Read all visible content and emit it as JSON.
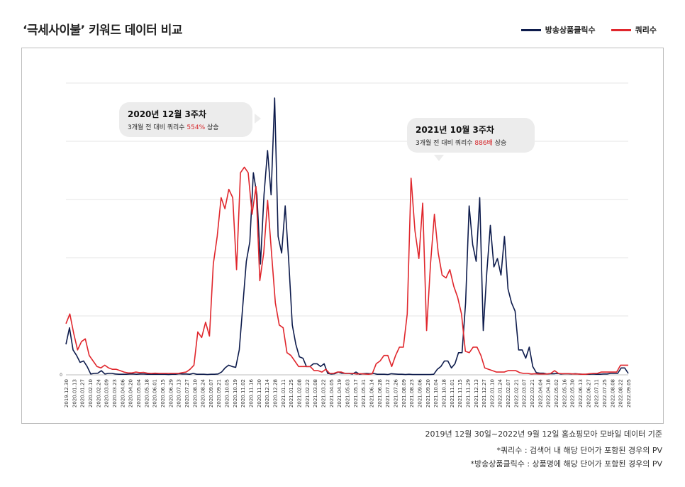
{
  "title": "‘극세사이불’ 키워드 데이터 비교",
  "legend": [
    {
      "label": "방송상품클릭수",
      "color": "#0d1b4c"
    },
    {
      "label": "쿼리수",
      "color": "#e0262c"
    }
  ],
  "callouts": [
    {
      "heading": "2020년 12월 3주차",
      "text_prefix": "3개월 전 대비 쿼리수 ",
      "highlight": "554%",
      "text_suffix": " 상승"
    },
    {
      "heading": "2021년 10월 3주차",
      "text_prefix": "3개월 전 대비 쿼리수 ",
      "highlight": "886배",
      "text_suffix": " 상승"
    }
  ],
  "footnotes": {
    "period": "2019년 12월 30일~2022년 9월 12일 홈쇼핑모아 모바일 데이터 기준",
    "query_def": "*쿼리수 : 검색어 내 해당 단어가 포함된 경우의 PV",
    "click_def": "*방송상품클릭수 : 상품명에 해당 단어가 포함된 경우의 PV"
  },
  "chart_data": {
    "type": "line",
    "y_tick_label": "0",
    "ylim": [
      0,
      100
    ],
    "grid": true,
    "legend_position": "top-right",
    "x_tick_labels": [
      "2019.12.30",
      "2020.01.13",
      "2020.01.27",
      "2020.02.10",
      "2020.02.24",
      "2020.03.09",
      "2020.03.23",
      "2020.04.06",
      "2020.04.20",
      "2020.05.04",
      "2020.05.18",
      "2020.06.01",
      "2020.06.15",
      "2020.06.29",
      "2020.07.13",
      "2020.07.27",
      "2020.08.10",
      "2020.08.24",
      "2020.09.07",
      "2020.09.21",
      "2020.10.05",
      "2020.10.19",
      "2020.11.02",
      "2020.11.16",
      "2020.11.30",
      "2020.12.14",
      "2020.12.28",
      "2021.01.11",
      "2021.01.25",
      "2021.02.08",
      "2021.02.22",
      "2021.03.08",
      "2021.03.22",
      "2021.04.05",
      "2021.04.19",
      "2021.05.03",
      "2021.05.17",
      "2021.05.31",
      "2021.06.14",
      "2021.06.28",
      "2021.07.12",
      "2021.07.26",
      "2021.08.09",
      "2021.08.23",
      "2021.09.06",
      "2021.09.20",
      "2021.10.04",
      "2021.10.18",
      "2021.11.01",
      "2021.11.15",
      "2021.11.29",
      "2021.12.13",
      "2021.12.27",
      "2022.01.10",
      "2022.01.24",
      "2022.02.07",
      "2022.02.21",
      "2022.03.07",
      "2022.03.21",
      "2022.04.04",
      "2022.04.18",
      "2022.05.02",
      "2022.05.16",
      "2022.05.30",
      "2022.06.13",
      "2022.06.27",
      "2022.07.11",
      "2022.07.25",
      "2022.08.08",
      "2022.08.22",
      "2022.09.05"
    ],
    "series": [
      {
        "name": "방송상품클릭수",
        "color": "#0d1b4c",
        "values": [
          11,
          17,
          9,
          7,
          4.5,
          5,
          3,
          0.3,
          0.5,
          0.6,
          1.5,
          0.3,
          0.5,
          0.5,
          0.3,
          0.2,
          0.2,
          0.2,
          0.3,
          0.3,
          0.2,
          0.3,
          0.3,
          0.2,
          0.2,
          0.2,
          0.2,
          0.2,
          0.2,
          0.1,
          0.2,
          0.2,
          0.4,
          0.3,
          0.3,
          0.2,
          0.5,
          0.2,
          0.2,
          0.2,
          0.1,
          0.2,
          0.2,
          0.3,
          1,
          2.5,
          3.5,
          3,
          2.7,
          9,
          25,
          41,
          48,
          73,
          65,
          40,
          65,
          81,
          65,
          100,
          50,
          44,
          61,
          41,
          18,
          11,
          6.5,
          6,
          3,
          3,
          4,
          4,
          3,
          4,
          0.5,
          0.3,
          0.4,
          1,
          0.6,
          0.5,
          0.5,
          0.3,
          1,
          0.2,
          0.4,
          0.5,
          0.4,
          0.5,
          0.2,
          0.2,
          0.2,
          0.1,
          0.4,
          0.3,
          0.2,
          0.2,
          0.1,
          0.2,
          0.1,
          0.1,
          0.1,
          0.1,
          0.1,
          0.1,
          0.2,
          2,
          3,
          5,
          5,
          2.5,
          4,
          8,
          8,
          26,
          61,
          47,
          41,
          64,
          16,
          37,
          54,
          39,
          42,
          36,
          50,
          31,
          26,
          23,
          9,
          9,
          6,
          10,
          3,
          0.8,
          0.6,
          0.6,
          0.3,
          0.4,
          0.4,
          0.5,
          0.3,
          0.4,
          0.4,
          0.3,
          0.4,
          0.3,
          0.2,
          0.2,
          0.2,
          0.3,
          0.2,
          0.2,
          0.3,
          0.3,
          0.5,
          0.5,
          0.5,
          2.5,
          2.5,
          0.5
        ]
      },
      {
        "name": "쿼리수",
        "color": "#e0262c",
        "values": [
          18.5,
          22,
          15,
          9,
          12,
          13,
          7,
          5,
          3,
          2.5,
          3.5,
          2.5,
          2,
          2,
          1.5,
          1,
          0.7,
          0.7,
          1,
          0.8,
          0.9,
          0.6,
          0.5,
          0.6,
          0.5,
          0.5,
          0.5,
          0.5,
          0.5,
          0.5,
          0.8,
          1,
          2,
          3.5,
          15.5,
          13.5,
          19,
          14,
          40,
          50,
          64,
          60,
          67,
          64,
          38,
          73,
          75,
          73,
          58,
          68,
          34,
          44,
          63,
          44,
          26,
          18,
          17,
          8,
          7,
          5,
          3,
          3,
          3,
          3,
          1.5,
          1.5,
          1,
          2,
          0.5,
          0.5,
          1,
          1,
          0.5,
          0.5,
          0.5,
          0.3,
          0.4,
          0.3,
          0.2,
          0.4,
          4,
          5,
          7,
          7,
          3,
          7,
          10,
          10,
          22,
          71,
          52,
          42,
          62,
          16,
          40,
          58,
          44,
          36,
          35,
          38,
          32,
          28,
          22,
          8.5,
          8,
          10,
          10,
          7,
          2.5,
          2,
          1.5,
          1,
          1,
          1,
          1.5,
          1.5,
          1.5,
          0.8,
          0.5,
          0.5,
          0.3,
          0.4,
          0.3,
          0.3,
          0.3,
          0.5,
          1.5,
          0.5,
          0.4,
          0.4,
          0.4,
          0.3,
          0.3,
          0.2,
          0.2,
          0.4,
          0.5,
          0.5,
          1,
          1,
          1,
          1,
          1,
          3.5,
          3.5,
          3.5
        ]
      }
    ]
  }
}
